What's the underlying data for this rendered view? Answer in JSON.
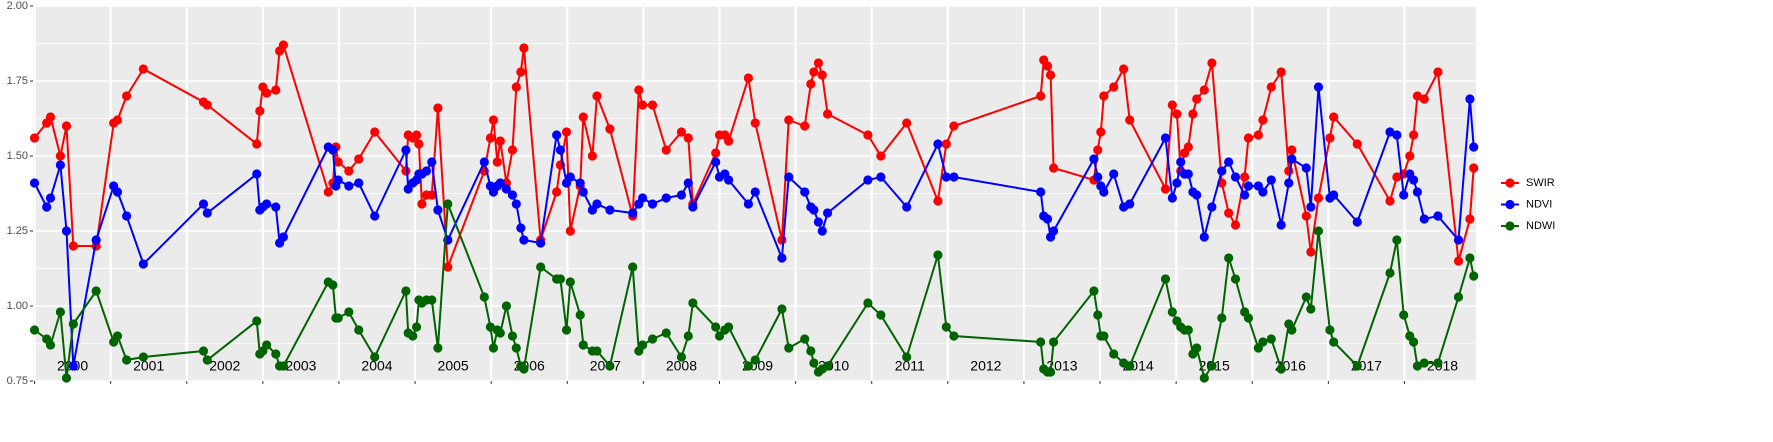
{
  "chart_data": {
    "type": "line",
    "x": [
      2000.0,
      2000.16,
      2000.21,
      2000.34,
      2000.42,
      2000.51,
      2000.81,
      2001.04,
      2001.09,
      2001.21,
      2001.43,
      2002.22,
      2002.27,
      2002.92,
      2002.96,
      2003.0,
      2003.05,
      2003.17,
      2003.22,
      2003.27,
      2003.86,
      2003.92,
      2003.96,
      2003.99,
      2004.13,
      2004.26,
      2004.47,
      2004.88,
      2004.91,
      2004.97,
      2005.02,
      2005.05,
      2005.09,
      2005.15,
      2005.22,
      2005.3,
      2005.43,
      2005.91,
      2005.99,
      2006.03,
      2006.08,
      2006.12,
      2006.2,
      2006.28,
      2006.33,
      2006.39,
      2006.43,
      2006.65,
      2006.86,
      2006.91,
      2006.99,
      2007.04,
      2007.17,
      2007.21,
      2007.33,
      2007.39,
      2007.56,
      2007.86,
      2007.94,
      2007.99,
      2008.12,
      2008.3,
      2008.5,
      2008.59,
      2008.65,
      2008.95,
      2009.0,
      2009.07,
      2009.12,
      2009.38,
      2009.47,
      2009.82,
      2009.91,
      2010.12,
      2010.2,
      2010.24,
      2010.3,
      2010.35,
      2010.42,
      2010.95,
      2011.12,
      2011.46,
      2011.87,
      2011.98,
      2012.08,
      2013.22,
      2013.26,
      2013.31,
      2013.35,
      2013.39,
      2013.92,
      2013.97,
      2014.01,
      2014.05,
      2014.18,
      2014.31,
      2014.39,
      2014.86,
      2014.95,
      2015.01,
      2015.06,
      2015.11,
      2015.16,
      2015.22,
      2015.27,
      2015.37,
      2015.47,
      2015.6,
      2015.69,
      2015.78,
      2015.9,
      2015.95,
      2016.08,
      2016.14,
      2016.25,
      2016.38,
      2016.48,
      2016.52,
      2016.71,
      2016.77,
      2016.87,
      2017.02,
      2017.07,
      2017.38,
      2017.81,
      2017.9,
      2017.99,
      2018.07,
      2018.12,
      2018.17,
      2018.26,
      2018.44,
      2018.71,
      2018.86,
      2018.91
    ],
    "series": [
      {
        "name": "SWIR",
        "color": "#ff0000",
        "values": [
          1.56,
          1.61,
          1.63,
          1.5,
          1.6,
          1.2,
          1.2,
          1.61,
          1.62,
          1.7,
          1.79,
          1.68,
          1.67,
          1.54,
          1.65,
          1.73,
          1.71,
          1.72,
          1.85,
          1.87,
          1.38,
          1.41,
          1.53,
          1.48,
          1.45,
          1.49,
          1.58,
          1.45,
          1.57,
          1.56,
          1.57,
          1.54,
          1.34,
          1.37,
          1.37,
          1.66,
          1.13,
          1.45,
          1.56,
          1.62,
          1.48,
          1.55,
          1.41,
          1.52,
          1.73,
          1.78,
          1.86,
          1.22,
          1.38,
          1.47,
          1.58,
          1.25,
          1.4,
          1.63,
          1.5,
          1.7,
          1.59,
          1.3,
          1.72,
          1.67,
          1.67,
          1.52,
          1.58,
          1.56,
          1.34,
          1.51,
          1.57,
          1.57,
          1.55,
          1.76,
          1.61,
          1.22,
          1.62,
          1.6,
          1.74,
          1.78,
          1.81,
          1.77,
          1.64,
          1.57,
          1.5,
          1.61,
          1.35,
          1.54,
          1.6,
          1.7,
          1.82,
          1.8,
          1.77,
          1.46,
          1.42,
          1.52,
          1.58,
          1.7,
          1.73,
          1.79,
          1.62,
          1.39,
          1.67,
          1.64,
          1.45,
          1.51,
          1.53,
          1.64,
          1.69,
          1.72,
          1.81,
          1.41,
          1.31,
          1.27,
          1.43,
          1.56,
          1.57,
          1.62,
          1.73,
          1.78,
          1.45,
          1.52,
          1.3,
          1.18,
          1.36,
          1.56,
          1.63,
          1.54,
          1.35,
          1.43,
          1.44,
          1.5,
          1.57,
          1.7,
          1.69,
          1.78,
          1.15,
          1.29,
          1.46
        ]
      },
      {
        "name": "NDVI",
        "color": "#0000ff",
        "values": [
          1.41,
          1.33,
          1.36,
          1.47,
          1.25,
          0.8,
          1.22,
          1.4,
          1.38,
          1.3,
          1.14,
          1.34,
          1.31,
          1.44,
          1.32,
          1.33,
          1.34,
          1.33,
          1.21,
          1.23,
          1.53,
          1.52,
          1.4,
          1.42,
          1.4,
          1.41,
          1.3,
          1.52,
          1.39,
          1.41,
          1.42,
          1.44,
          1.44,
          1.45,
          1.48,
          1.32,
          1.22,
          1.48,
          1.4,
          1.38,
          1.4,
          1.41,
          1.39,
          1.37,
          1.34,
          1.26,
          1.22,
          1.21,
          1.57,
          1.52,
          1.41,
          1.43,
          1.41,
          1.38,
          1.32,
          1.34,
          1.32,
          1.31,
          1.34,
          1.36,
          1.34,
          1.36,
          1.37,
          1.41,
          1.33,
          1.48,
          1.43,
          1.44,
          1.42,
          1.34,
          1.38,
          1.16,
          1.43,
          1.38,
          1.33,
          1.32,
          1.28,
          1.25,
          1.31,
          1.42,
          1.43,
          1.33,
          1.54,
          1.43,
          1.43,
          1.38,
          1.3,
          1.29,
          1.23,
          1.25,
          1.49,
          1.43,
          1.4,
          1.38,
          1.44,
          1.33,
          1.34,
          1.56,
          1.36,
          1.41,
          1.48,
          1.44,
          1.44,
          1.38,
          1.37,
          1.23,
          1.33,
          1.45,
          1.48,
          1.43,
          1.37,
          1.4,
          1.4,
          1.38,
          1.42,
          1.27,
          1.41,
          1.49,
          1.46,
          1.33,
          1.73,
          1.36,
          1.37,
          1.28,
          1.58,
          1.57,
          1.37,
          1.44,
          1.42,
          1.38,
          1.29,
          1.3,
          1.22,
          1.69,
          1.53
        ]
      },
      {
        "name": "NDWI",
        "color": "#006400",
        "values": [
          0.92,
          0.89,
          0.87,
          0.98,
          0.76,
          0.94,
          1.05,
          0.88,
          0.9,
          0.82,
          0.83,
          0.85,
          0.82,
          0.95,
          0.84,
          0.85,
          0.87,
          0.84,
          0.8,
          0.8,
          1.08,
          1.07,
          0.96,
          0.96,
          0.98,
          0.92,
          0.83,
          1.05,
          0.91,
          0.9,
          0.93,
          1.02,
          1.01,
          1.02,
          1.02,
          0.86,
          1.34,
          1.03,
          0.93,
          0.86,
          0.92,
          0.91,
          1.0,
          0.9,
          0.86,
          0.8,
          0.79,
          1.13,
          1.09,
          1.09,
          0.92,
          1.08,
          0.97,
          0.87,
          0.85,
          0.85,
          0.8,
          1.13,
          0.85,
          0.87,
          0.89,
          0.91,
          0.83,
          0.9,
          1.01,
          0.93,
          0.9,
          0.92,
          0.93,
          0.8,
          0.82,
          0.99,
          0.86,
          0.89,
          0.85,
          0.81,
          0.78,
          0.79,
          0.8,
          1.01,
          0.97,
          0.83,
          1.17,
          0.93,
          0.9,
          0.88,
          0.79,
          0.78,
          0.78,
          0.88,
          1.05,
          0.97,
          0.9,
          0.9,
          0.84,
          0.81,
          0.8,
          1.09,
          0.98,
          0.95,
          0.93,
          0.92,
          0.92,
          0.84,
          0.86,
          0.76,
          0.8,
          0.96,
          1.16,
          1.09,
          0.98,
          0.96,
          0.86,
          0.88,
          0.89,
          0.79,
          0.94,
          0.92,
          1.03,
          0.99,
          1.25,
          0.92,
          0.88,
          0.8,
          1.11,
          1.22,
          0.97,
          0.9,
          0.88,
          0.8,
          0.81,
          0.81,
          1.03,
          1.16,
          1.1
        ]
      }
    ],
    "xlim": [
      1999.98,
      2018.94
    ],
    "xticks": [
      2000,
      2001,
      2002,
      2003,
      2004,
      2005,
      2006,
      2007,
      2008,
      2009,
      2010,
      2011,
      2012,
      2013,
      2014,
      2015,
      2016,
      2017,
      2018
    ],
    "x_labels": [
      {
        "value": 2000.5,
        "label": "2000"
      },
      {
        "value": 2001.5,
        "label": "2001"
      },
      {
        "value": 2002.5,
        "label": "2002"
      },
      {
        "value": 2003.5,
        "label": "2003"
      },
      {
        "value": 2004.5,
        "label": "2004"
      },
      {
        "value": 2005.5,
        "label": "2005"
      },
      {
        "value": 2006.5,
        "label": "2006"
      },
      {
        "value": 2007.5,
        "label": "2007"
      },
      {
        "value": 2008.5,
        "label": "2008"
      },
      {
        "value": 2009.5,
        "label": "2009"
      },
      {
        "value": 2010.5,
        "label": "2010"
      },
      {
        "value": 2011.5,
        "label": "2011"
      },
      {
        "value": 2012.5,
        "label": "2012"
      },
      {
        "value": 2013.5,
        "label": "2013"
      },
      {
        "value": 2014.5,
        "label": "2014"
      },
      {
        "value": 2015.5,
        "label": "2015"
      },
      {
        "value": 2016.5,
        "label": "2016"
      },
      {
        "value": 2017.5,
        "label": "2017"
      },
      {
        "value": 2018.5,
        "label": "2018"
      }
    ],
    "ylim": [
      0.75,
      2.0
    ],
    "yticks": [
      0.75,
      {
        "value": 1,
        "label": "1.00"
      },
      1.25,
      {
        "value": 1.5,
        "label": "1.50"
      },
      1.75,
      {
        "value": 2,
        "label": "2.00"
      }
    ],
    "y_minor_ticks": [
      0.875,
      1.125,
      1.375,
      1.625,
      1.875
    ],
    "grid": true,
    "legend": "right"
  }
}
